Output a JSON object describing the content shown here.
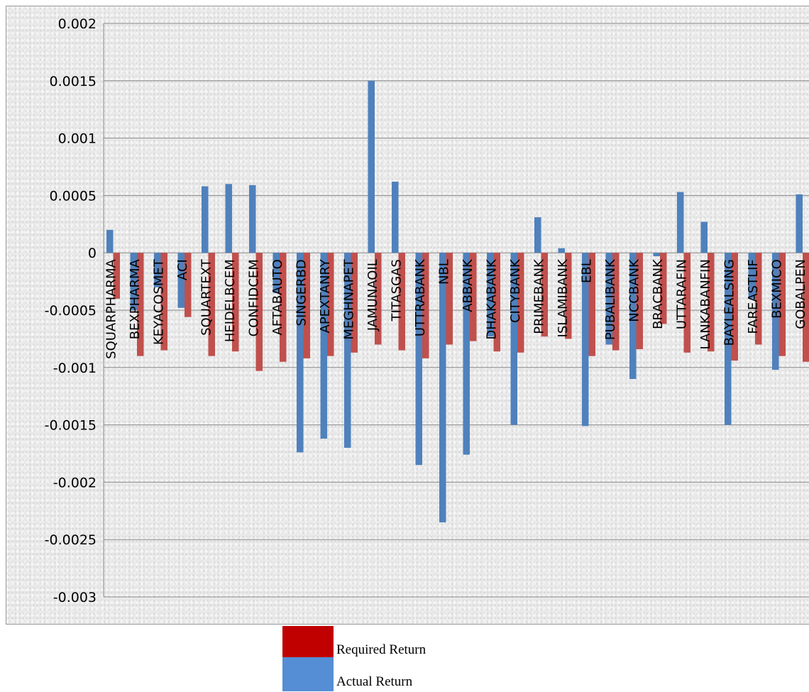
{
  "chart_data": {
    "type": "bar",
    "categories": [
      "SQUARPHARMA",
      "BEXPHARMA",
      "KEYACOSMET",
      "ACI",
      "SQUARTEXT",
      "HEIDELBCEM",
      "CONFIDCEM",
      "AFTABAUTO",
      "SINGERBD",
      "APEXTANRY",
      "MEGHNAPET",
      "JAMUNAOIL",
      "TITASGAS",
      "UTTRABANK",
      "NBL",
      "ABBANK",
      "DHAKABANK",
      "CITYBANK",
      "PRIMEBANK",
      "ISLAMIBANK",
      "EBL",
      "PUBALIBANK",
      "NCCBANK",
      "BRACBANK",
      "UTTARAFIN",
      "LANKABANFIN",
      "BAYLEALSING",
      "FAREASTLIF",
      "BEXMICO",
      "GOBALPEN"
    ],
    "series": [
      {
        "name": "Actual Return",
        "color": "#4f81bd",
        "values": [
          0.0002,
          -0.0005,
          -0.0003,
          -0.00048,
          0.00058,
          0.0006,
          0.00059,
          -0.00035,
          -0.00174,
          -0.00162,
          -0.0017,
          0.0015,
          0.00062,
          -0.00185,
          -0.00235,
          -0.00176,
          -0.00073,
          -0.0015,
          0.00031,
          4e-05,
          -0.00151,
          -0.0008,
          -0.0011,
          -3e-05,
          0.00053,
          0.00027,
          -0.0015,
          -0.0004,
          -0.00102,
          0.00051
        ]
      },
      {
        "name": "Required Return",
        "color": "#c0504d",
        "values": [
          -0.0004,
          -0.0009,
          -0.00085,
          -0.00056,
          -0.0009,
          -0.00086,
          -0.00103,
          -0.00095,
          -0.00092,
          -0.0009,
          -0.00087,
          -0.0008,
          -0.00085,
          -0.00092,
          -0.0008,
          -0.00077,
          -0.00086,
          -0.00087,
          -0.00073,
          -0.00075,
          -0.0009,
          -0.00085,
          -0.00084,
          -0.00062,
          -0.00087,
          -0.00086,
          -0.00094,
          -0.0008,
          -0.0009,
          -0.00095
        ]
      }
    ],
    "y_ticks": [
      "0.002",
      "0.0015",
      "0.001",
      "0.0005",
      "0",
      "-0.0005",
      "-0.001",
      "-0.0015",
      "-0.002",
      "-0.0025",
      "-0.003"
    ],
    "ylim": [
      -0.003,
      0.002
    ],
    "grid": true,
    "legend_position": "bottom",
    "legend": [
      {
        "label": "Required Return",
        "color": "#c00000"
      },
      {
        "label": "Actual Return",
        "color": "#558ed5"
      }
    ]
  }
}
